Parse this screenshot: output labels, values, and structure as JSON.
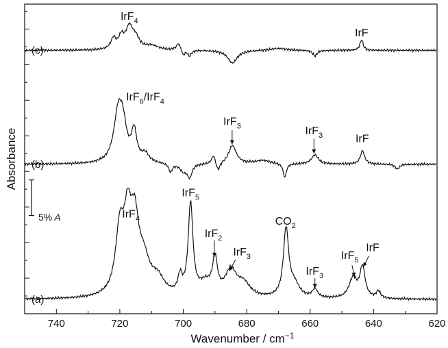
{
  "chart_data": {
    "type": "line",
    "xlabel": "Wavenumber / cm",
    "xlabel_superscript": "−1",
    "ylabel": "Absorbance",
    "xlim": [
      750,
      620
    ],
    "x_reversed": true,
    "xticks": [
      740,
      720,
      700,
      680,
      660,
      640,
      620
    ],
    "x_minor_step": 10,
    "grid": false,
    "scale_bar": {
      "label": "5%",
      "label_italic": "A",
      "value_fraction": 0.05
    },
    "baseline_absorbance": {
      "a": 0.02,
      "b": 0.21,
      "c": 0.37
    },
    "ylim_absorbance": [
      0.0,
      0.435
    ],
    "series": [
      {
        "name": "(a)",
        "baseline": 0.02,
        "peaks": [
          {
            "x": 720,
            "h": 0.086,
            "w": 1.6
          },
          {
            "x": 717.5,
            "h": 0.094,
            "w": 1.5
          },
          {
            "x": 715.3,
            "h": 0.086,
            "w": 1.5
          },
          {
            "x": 712.5,
            "h": 0.045,
            "w": 2.4
          },
          {
            "x": 708,
            "h": 0.022,
            "w": 2.5
          },
          {
            "x": 701,
            "h": 0.024,
            "w": 0.8
          },
          {
            "x": 697.7,
            "h": 0.128,
            "w": 0.9
          },
          {
            "x": 693,
            "h": 0.018,
            "w": 2.5
          },
          {
            "x": 690,
            "h": 0.048,
            "w": 0.9
          },
          {
            "x": 685,
            "h": 0.036,
            "w": 2.2
          },
          {
            "x": 681,
            "h": 0.018,
            "w": 2.5
          },
          {
            "x": 667.6,
            "h": 0.095,
            "w": 1.0
          },
          {
            "x": 665,
            "h": 0.018,
            "w": 2.0
          },
          {
            "x": 658.5,
            "h": 0.012,
            "w": 1.0
          },
          {
            "x": 646.5,
            "h": 0.028,
            "w": 1.5
          },
          {
            "x": 643.5,
            "h": 0.043,
            "w": 1.0
          },
          {
            "x": 638.5,
            "h": 0.01,
            "w": 0.8
          }
        ]
      },
      {
        "name": "(b)",
        "baseline": 0.21,
        "peaks": [
          {
            "x": 720.5,
            "h": 0.068,
            "w": 1.7
          },
          {
            "x": 719,
            "h": 0.04,
            "w": 1.4
          },
          {
            "x": 715.5,
            "h": 0.042,
            "w": 1.0
          },
          {
            "x": 712,
            "h": 0.012,
            "w": 1.5
          },
          {
            "x": 704,
            "h": -0.012,
            "w": 0.7
          },
          {
            "x": 700,
            "h": -0.01,
            "w": 1.3
          },
          {
            "x": 698,
            "h": -0.018,
            "w": 0.9
          },
          {
            "x": 690.5,
            "h": 0.012,
            "w": 0.7
          },
          {
            "x": 689,
            "h": -0.012,
            "w": 0.7
          },
          {
            "x": 684.5,
            "h": 0.026,
            "w": 1.5
          },
          {
            "x": 675,
            "h": 0.005,
            "w": 3.0
          },
          {
            "x": 668,
            "h": -0.02,
            "w": 0.6
          },
          {
            "x": 658.5,
            "h": 0.013,
            "w": 1.3
          },
          {
            "x": 643.5,
            "h": 0.019,
            "w": 0.8
          },
          {
            "x": 632.5,
            "h": -0.007,
            "w": 0.8
          }
        ]
      },
      {
        "name": "(c)",
        "baseline": 0.37,
        "peaks": [
          {
            "x": 722,
            "h": 0.015,
            "w": 1.0
          },
          {
            "x": 719.5,
            "h": 0.016,
            "w": 1.0
          },
          {
            "x": 717,
            "h": 0.03,
            "w": 1.4
          },
          {
            "x": 715,
            "h": 0.014,
            "w": 1.4
          },
          {
            "x": 710,
            "h": 0.006,
            "w": 2.5
          },
          {
            "x": 701.5,
            "h": 0.01,
            "w": 0.8
          },
          {
            "x": 700,
            "h": -0.008,
            "w": 0.6
          },
          {
            "x": 698,
            "h": -0.008,
            "w": 0.7
          },
          {
            "x": 684.5,
            "h": -0.018,
            "w": 1.8
          },
          {
            "x": 670,
            "h": 0.003,
            "w": 3.0
          },
          {
            "x": 658.5,
            "h": -0.008,
            "w": 0.8
          },
          {
            "x": 643.8,
            "h": 0.015,
            "w": 0.6
          }
        ]
      }
    ]
  },
  "annotations": [
    {
      "id": "a-irf4",
      "text": "IrF",
      "sub": "4"
    },
    {
      "id": "a-irf5-main",
      "text": "IrF",
      "sub": "5"
    },
    {
      "id": "a-irf2",
      "text": "IrF",
      "sub": "2"
    },
    {
      "id": "a-irf3-left",
      "text": "IrF",
      "sub": "3"
    },
    {
      "id": "a-co2",
      "text": "CO",
      "sub": "2"
    },
    {
      "id": "a-irf3-right",
      "text": "IrF",
      "sub": "3"
    },
    {
      "id": "a-irf5-right",
      "text": "IrF",
      "sub": "5"
    },
    {
      "id": "a-irf",
      "text": "IrF",
      "sub": ""
    },
    {
      "id": "b-irf6-irf4",
      "text": "IrF",
      "sub": "6",
      "text2": "/IrF",
      "sub2": "4"
    },
    {
      "id": "b-irf3-left",
      "text": "IrF",
      "sub": "3"
    },
    {
      "id": "b-irf3-right",
      "text": "IrF",
      "sub": "3"
    },
    {
      "id": "b-irf",
      "text": "IrF",
      "sub": ""
    },
    {
      "id": "c-irf4",
      "text": "IrF",
      "sub": "4"
    },
    {
      "id": "c-irf",
      "text": "IrF",
      "sub": ""
    }
  ],
  "colors": {
    "line": "#111111",
    "axis": "#111111",
    "background": "#ffffff"
  }
}
